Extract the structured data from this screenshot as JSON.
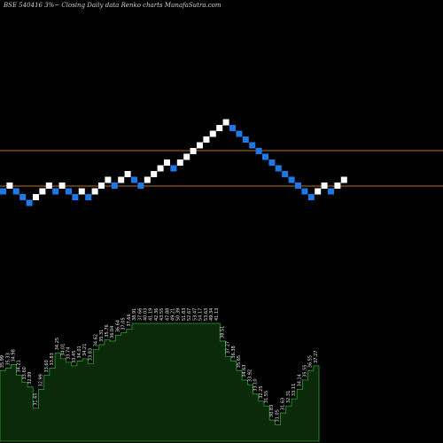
{
  "header": {
    "title": "BSE 540416  3%~ Closing Daily data  Renko  charts MunafaSutra.com"
  },
  "colors": {
    "background": "#000000",
    "up_brick": "#ffffff",
    "down_brick": "#1e78e6",
    "ref_line": "#b8741a",
    "volume_fill": "#0a2a0a",
    "volume_stroke": "#2aa52a"
  },
  "chart_data": {
    "type": "renko",
    "title": "BSE 540416  3%~ Closing Daily data  Renko  charts MunafaSutra.com",
    "reference_lines": [
      0,
      0
    ],
    "bricks": [
      {
        "dir": "down",
        "level": 0
      },
      {
        "dir": "up",
        "level": 1
      },
      {
        "dir": "down",
        "level": 0
      },
      {
        "dir": "down",
        "level": -1
      },
      {
        "dir": "down",
        "level": -2
      },
      {
        "dir": "up",
        "level": -1
      },
      {
        "dir": "up",
        "level": 0
      },
      {
        "dir": "up",
        "level": 1
      },
      {
        "dir": "down",
        "level": 0
      },
      {
        "dir": "up",
        "level": 1
      },
      {
        "dir": "down",
        "level": 0
      },
      {
        "dir": "down",
        "level": -1
      },
      {
        "dir": "up",
        "level": 0
      },
      {
        "dir": "down",
        "level": -1
      },
      {
        "dir": "up",
        "level": 0
      },
      {
        "dir": "up",
        "level": 1
      },
      {
        "dir": "up",
        "level": 2
      },
      {
        "dir": "down",
        "level": 1
      },
      {
        "dir": "up",
        "level": 2
      },
      {
        "dir": "up",
        "level": 3
      },
      {
        "dir": "down",
        "level": 2
      },
      {
        "dir": "down",
        "level": 1
      },
      {
        "dir": "up",
        "level": 2
      },
      {
        "dir": "up",
        "level": 3
      },
      {
        "dir": "up",
        "level": 4
      },
      {
        "dir": "up",
        "level": 5
      },
      {
        "dir": "down",
        "level": 4
      },
      {
        "dir": "up",
        "level": 5
      },
      {
        "dir": "up",
        "level": 6
      },
      {
        "dir": "up",
        "level": 7
      },
      {
        "dir": "up",
        "level": 8
      },
      {
        "dir": "up",
        "level": 9
      },
      {
        "dir": "up",
        "level": 10
      },
      {
        "dir": "up",
        "level": 11
      },
      {
        "dir": "up",
        "level": 12
      },
      {
        "dir": "down",
        "level": 11
      },
      {
        "dir": "down",
        "level": 10
      },
      {
        "dir": "down",
        "level": 9
      },
      {
        "dir": "down",
        "level": 8
      },
      {
        "dir": "down",
        "level": 7
      },
      {
        "dir": "down",
        "level": 6
      },
      {
        "dir": "down",
        "level": 5
      },
      {
        "dir": "down",
        "level": 4
      },
      {
        "dir": "down",
        "level": 3
      },
      {
        "dir": "down",
        "level": 2
      },
      {
        "dir": "down",
        "level": 1
      },
      {
        "dir": "down",
        "level": 0
      },
      {
        "dir": "down",
        "level": -1
      },
      {
        "dir": "up",
        "level": 0
      },
      {
        "dir": "up",
        "level": 1
      },
      {
        "dir": "down",
        "level": 0
      },
      {
        "dir": "up",
        "level": 1
      },
      {
        "dir": "up",
        "level": 2
      }
    ],
    "volume_values": [
      60,
      62,
      65,
      56,
      50,
      46,
      28,
      44,
      56,
      62,
      75,
      70,
      67,
      64,
      68,
      70,
      66,
      78,
      82,
      86,
      85,
      90,
      92,
      95,
      100,
      100,
      100,
      100,
      100,
      100,
      100,
      100,
      100,
      100,
      100,
      100,
      100,
      100,
      100,
      100,
      85,
      72,
      68,
      60,
      52,
      48,
      40,
      34,
      30,
      18,
      14,
      24,
      30,
      36,
      44,
      52,
      60,
      64
    ],
    "labels": [
      "35.99",
      "35.33",
      "34.98",
      "34.21",
      "33.60",
      "32.99",
      "31.65",
      "32.99",
      "33.60",
      "33.83",
      "34.25",
      "34.01",
      "33.74",
      "33.45",
      "34.01",
      "34.21",
      "33.83",
      "34.62",
      "35.31",
      "35.76",
      "36.04",
      "36.64",
      "37.05",
      "37.66",
      "38.91",
      "37.66",
      "40.03",
      "41.19",
      "42.36",
      "43.55",
      "47.88",
      "49.21",
      "50.39",
      "51.83",
      "52.67",
      "53.47",
      "54.17",
      "53.63",
      "49.34",
      "41.13",
      "38.51",
      "37.27",
      "36.38",
      "35.65",
      "34.63",
      "33.92",
      "33.10",
      "32.25",
      "31.55",
      "30.83",
      "31.05",
      "31.63",
      "32.31",
      "33.11",
      "34.14",
      "35.55",
      "36.55",
      "37.27"
    ]
  }
}
